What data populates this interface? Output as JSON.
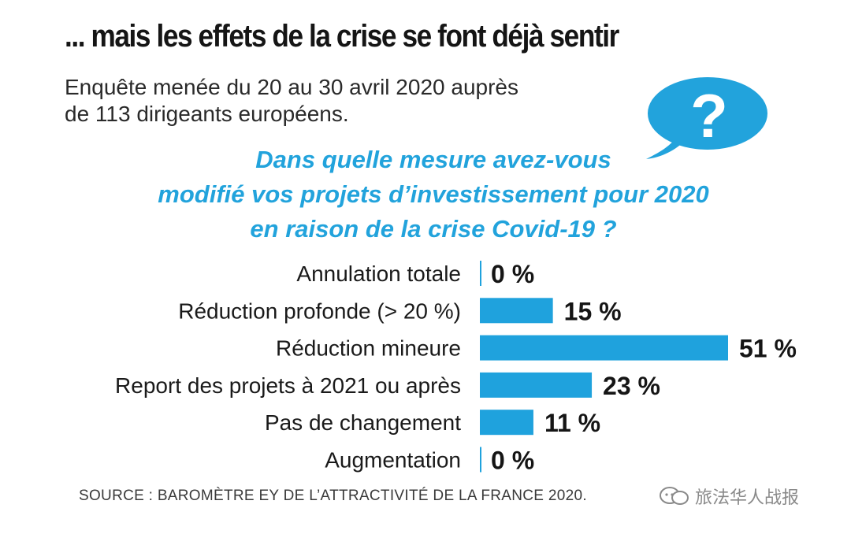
{
  "header": {
    "title": "... mais les effets de la crise se font déjà sentir",
    "subtitle_line1": "Enquête menée du 20 au 30 avril 2020 auprès",
    "subtitle_line2": "de 113 dirigeants européens."
  },
  "question": {
    "line1": "Dans quelle mesure avez-vous",
    "line2": "modifié vos projets d’investissement pour 2020",
    "line3": "en raison de la crise Covid-19 ?"
  },
  "bubble": {
    "symbol": "?"
  },
  "chart_data": {
    "type": "bar",
    "orientation": "horizontal",
    "title": "Dans quelle mesure avez-vous modifié vos projets d’investissement pour 2020 en raison de la crise Covid-19 ?",
    "categories": [
      "Annulation totale",
      "Réduction profonde (> 20 %)",
      "Réduction mineure",
      "Report des projets à 2021 ou après",
      "Pas de changement",
      "Augmentation"
    ],
    "values": [
      0,
      15,
      51,
      23,
      11,
      0
    ],
    "value_labels": [
      "0 %",
      "15 %",
      "51 %",
      "23 %",
      "11 %",
      "0 %"
    ],
    "unit": "%",
    "xlim": [
      0,
      51
    ],
    "bar_color": "#1fa2dd"
  },
  "footer": {
    "source": "SOURCE : BAROMÈTRE EY DE L’ATTRACTIVITÉ DE LA FRANCE 2020.",
    "watermark": "旅法华人战报"
  },
  "colors": {
    "accent": "#22a3dc",
    "text": "#1a1a1a"
  }
}
